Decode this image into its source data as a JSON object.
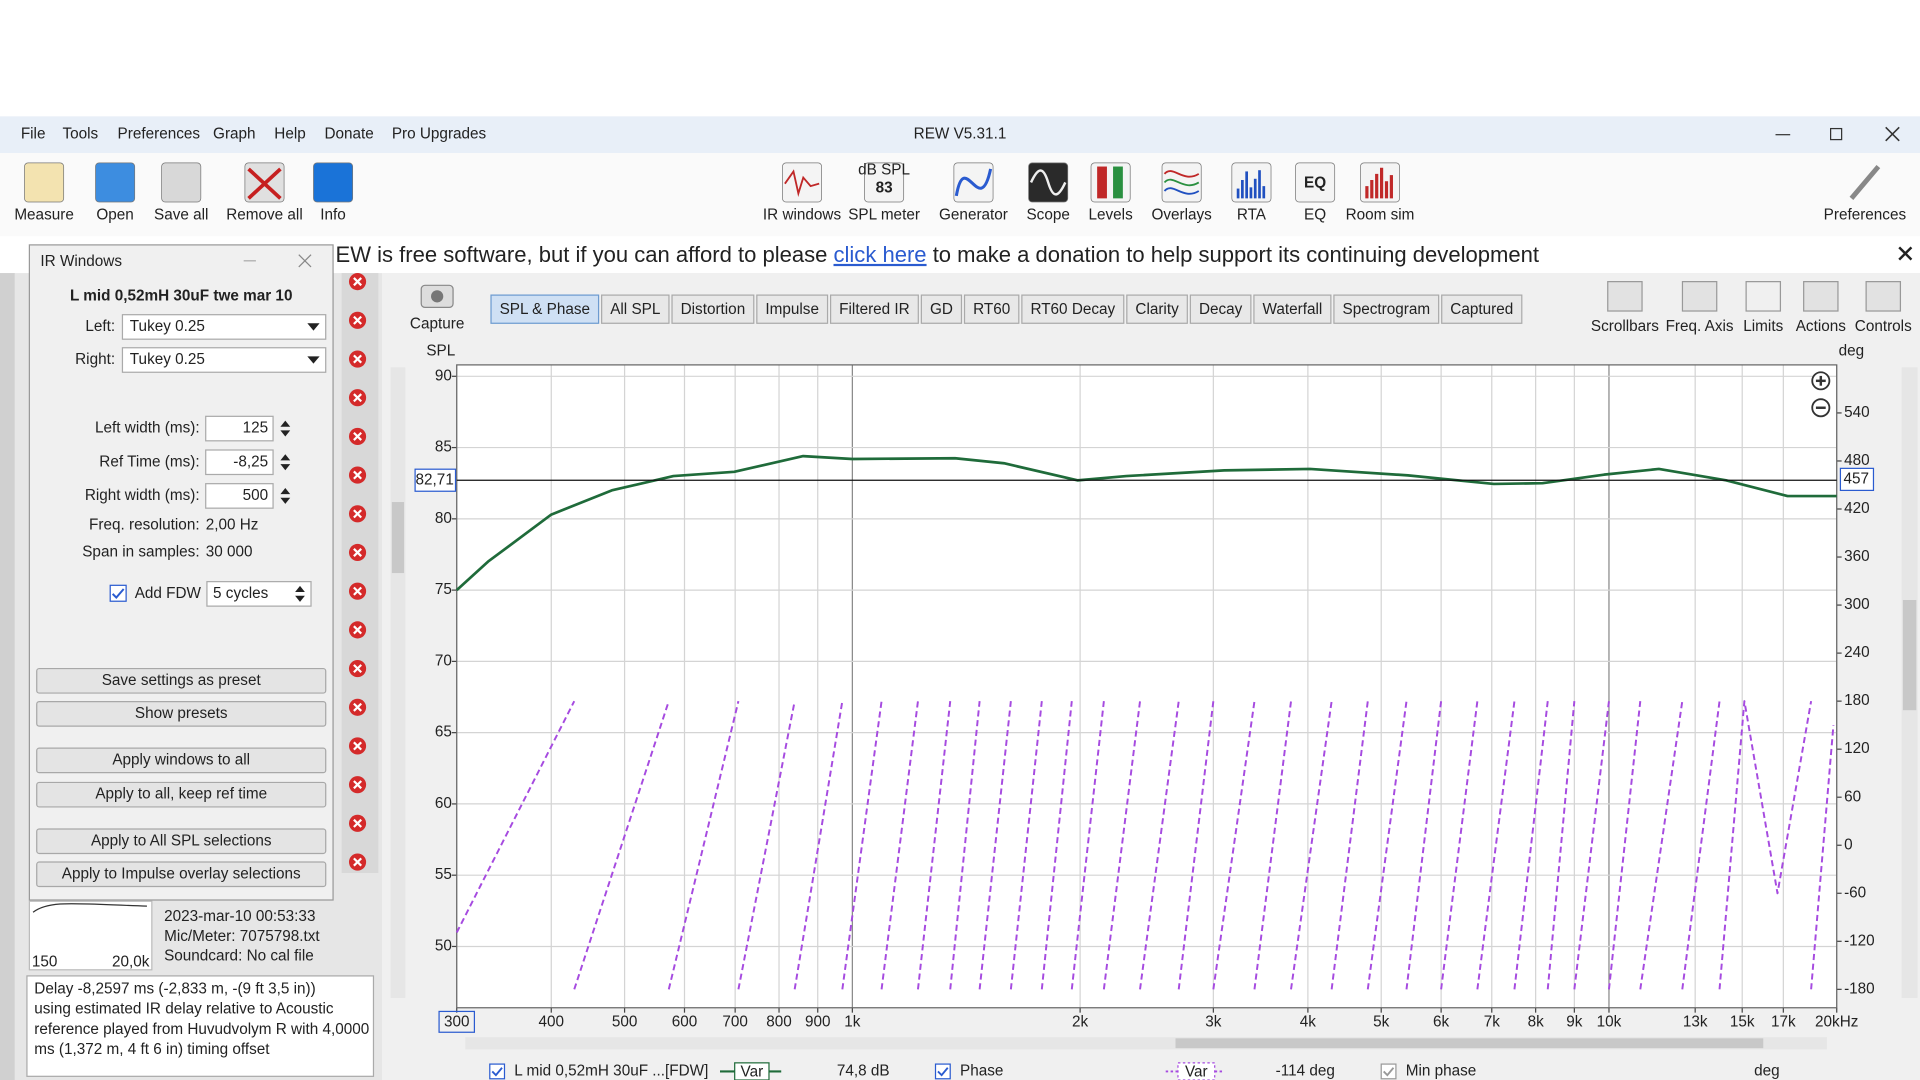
{
  "window": {
    "title": "REW V5.31.1",
    "menu": [
      "File",
      "Tools",
      "Preferences",
      "Graph",
      "Help",
      "Donate",
      "Pro Upgrades"
    ]
  },
  "toolbar": {
    "left": [
      "Measure",
      "Open",
      "Save all",
      "Remove all",
      "Info"
    ],
    "center": [
      "IR windows",
      "SPL meter",
      "Generator",
      "Scope",
      "Levels",
      "Overlays",
      "RTA",
      "EQ",
      "Room sim"
    ],
    "right": "Preferences",
    "spl_icon": [
      "dB SPL",
      "83"
    ],
    "eq_icon": "EQ"
  },
  "banner": {
    "before": "EW is free software, but if you can afford to please",
    "link": "click here",
    "after": "to make a donation to help support its continuing development"
  },
  "graph": {
    "capture": "Capture",
    "tabs": [
      "SPL & Phase",
      "All SPL",
      "Distortion",
      "Impulse",
      "Filtered IR",
      "GD",
      "RT60",
      "RT60 Decay",
      "Clarity",
      "Decay",
      "Waterfall",
      "Spectrogram",
      "Captured"
    ],
    "tools": [
      "Scrollbars",
      "Freq. Axis",
      "Limits",
      "Actions",
      "Controls"
    ]
  },
  "ir_windows": {
    "title": "IR Windows",
    "measurement": "L mid 0,52mH 30uF twe mar 10",
    "windows": [
      {
        "label": "Left:",
        "value": "Tukey 0.25"
      },
      {
        "label": "Right:",
        "value": "Tukey 0.25"
      }
    ],
    "numeric": [
      {
        "label": "Left width (ms):",
        "value": "125"
      },
      {
        "label": "Ref Time (ms):",
        "value": "-8,25"
      },
      {
        "label": "Right width (ms):",
        "value": "500"
      }
    ],
    "info": [
      {
        "label": "Freq. resolution:",
        "value": "2,00 Hz"
      },
      {
        "label": "Span in samples:",
        "value": "30 000"
      }
    ],
    "fdw": {
      "label": "Add FDW",
      "value": "5 cycles"
    },
    "buttons": [
      "Save settings as preset",
      "Show presets",
      "Apply windows to all",
      "Apply to all, keep ref time",
      "Apply to All SPL selections",
      "Apply to Impulse overlay selections"
    ]
  },
  "measurement_panel": {
    "lines": [
      "2023-mar-10 00:53:33",
      "Mic/Meter: 7075798.txt",
      "Soundcard: No cal file"
    ],
    "mini_axis": [
      "150",
      "20,0k"
    ],
    "delay": [
      "Delay -8,2597 ms (-2,833 m, -(9 ft 3,5 in))",
      "using estimated IR delay relative to Acoustic",
      "reference played from Huvudvolym R with 4,0000",
      "ms (1,372 m, 4 ft 6 in) timing offset"
    ]
  },
  "legend_bar": {
    "marker": "Var",
    "spl_readout": "74,8 dB",
    "phase_readout": "-114 deg",
    "min_phase": "Min phase",
    "min_phase_unit": "deg"
  },
  "chart_data": {
    "type": "line",
    "x_scale": "log",
    "xlim": [
      300,
      20000
    ],
    "ylim": [
      45.7,
      90.8
    ],
    "y2lim": [
      -203,
      600
    ],
    "y_label": "SPL",
    "y2_label": "deg",
    "grid": true,
    "xticks": [
      300,
      400,
      500,
      600,
      700,
      800,
      900,
      {
        "value": 1000,
        "label": "1k"
      },
      {
        "value": 2000,
        "label": "2k"
      },
      {
        "value": 3000,
        "label": "3k"
      },
      {
        "value": 4000,
        "label": "4k"
      },
      {
        "value": 5000,
        "label": "5k"
      },
      {
        "value": 6000,
        "label": "6k"
      },
      {
        "value": 7000,
        "label": "7k"
      },
      {
        "value": 8000,
        "label": "8k"
      },
      {
        "value": 9000,
        "label": "9k"
      },
      {
        "value": 10000,
        "label": "10k"
      },
      {
        "value": 13000,
        "label": "13k"
      },
      {
        "value": 15000,
        "label": "15k"
      },
      {
        "value": 17000,
        "label": "17k"
      },
      {
        "value": 20000,
        "label": "20kHz"
      }
    ],
    "yticks": [
      50,
      55,
      60,
      65,
      70,
      75,
      80,
      85,
      90
    ],
    "y2ticks": [
      -180,
      -120,
      -60,
      0,
      60,
      120,
      180,
      240,
      300,
      360,
      420,
      480,
      540
    ],
    "cursor": {
      "y": {
        "value": 82.71,
        "label": "82,71"
      },
      "y2": 457
    },
    "series": [
      {
        "name": "L mid 0,52mH 30uF ...[FDW]",
        "color": "#1f6b3a",
        "x": [
          300,
          330,
          400,
          481,
          580,
          698,
          861,
          1000,
          1367,
          1586,
          1984,
          2302,
          3101,
          4025,
          5425,
          7044,
          8170,
          9850,
          11640,
          14280,
          17220,
          20000
        ],
        "values": [
          75.0,
          77.0,
          80.3,
          82.0,
          83.0,
          83.3,
          84.4,
          84.2,
          84.25,
          83.9,
          82.7,
          83.0,
          83.4,
          83.5,
          83.05,
          82.45,
          82.5,
          83.1,
          83.5,
          82.7,
          81.6,
          81.6
        ]
      },
      {
        "name": "Phase",
        "color": "#a64be0",
        "axis": "y2",
        "dash": true,
        "x": [
          300,
          429,
          429,
          429,
          572,
          572,
          572,
          707,
          707,
          707,
          839,
          839,
          839,
          970,
          970,
          970,
          1093,
          1093,
          1093,
          1221,
          1221,
          1221,
          1347,
          1347,
          1347,
          1473,
          1473,
          1473,
          1620,
          1620,
          1620,
          1780,
          1780,
          1780,
          1950,
          1950,
          1950,
          2150,
          2150,
          2150,
          2400,
          2400,
          2400,
          2700,
          2700,
          2700,
          3000,
          3000,
          3000,
          3400,
          3400,
          3400,
          3800,
          3800,
          3800,
          4300,
          4300,
          4300,
          4800,
          4800,
          4800,
          5400,
          5400,
          5400,
          6000,
          6000,
          6000,
          6700,
          6700,
          6700,
          7500,
          7500,
          7500,
          8300,
          8300,
          8300,
          9000,
          9000,
          9000,
          10000,
          10000,
          10000,
          11000,
          11000,
          11000,
          12500,
          12500,
          12500,
          14000,
          14000,
          14000,
          15100,
          16700,
          18500,
          18500,
          18500,
          19800
        ],
        "values": [
          -109,
          180,
          null,
          -180,
          180,
          null,
          -180,
          180,
          null,
          -180,
          180,
          null,
          -180,
          180,
          null,
          -180,
          180,
          null,
          -180,
          180,
          null,
          -180,
          180,
          null,
          -180,
          180,
          null,
          -180,
          180,
          null,
          -180,
          180,
          null,
          -180,
          180,
          null,
          -180,
          180,
          null,
          -180,
          180,
          null,
          -180,
          180,
          null,
          -180,
          180,
          null,
          -180,
          180,
          null,
          -180,
          180,
          null,
          -180,
          180,
          null,
          -180,
          180,
          null,
          -180,
          180,
          null,
          -180,
          180,
          null,
          -180,
          180,
          null,
          -180,
          180,
          null,
          -180,
          180,
          null,
          -180,
          180,
          null,
          -180,
          180,
          null,
          -180,
          180,
          null,
          -180,
          180,
          null,
          -180,
          180,
          null,
          -180,
          180,
          -60,
          180,
          null,
          -180,
          150
        ]
      }
    ]
  }
}
